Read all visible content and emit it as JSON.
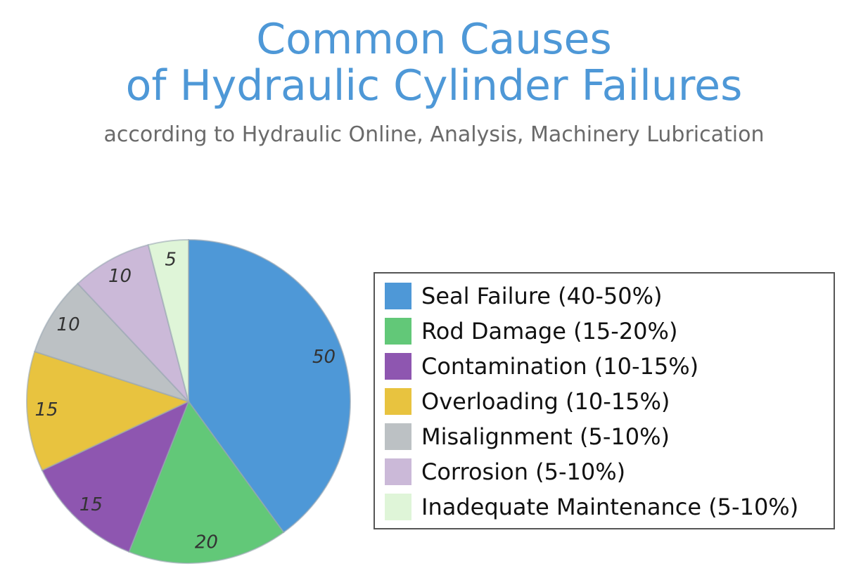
{
  "chart_data": {
    "type": "pie",
    "title_line1": "Common Causes",
    "title_line2": "of Hydraulic Cylinder Failures",
    "subtitle": "according to Hydraulic Online, Analysis, Machinery Lubrication",
    "start_angle_deg": 0,
    "direction": "clockwise",
    "legend_position": "right",
    "slices": [
      {
        "label": "Seal Failure (40-50%)",
        "value": 50,
        "color": "#4e98d7"
      },
      {
        "label": "Rod Damage (15-20%)",
        "value": 20,
        "color": "#62c878"
      },
      {
        "label": "Contamination (10-15%)",
        "value": 15,
        "color": "#8e56b0"
      },
      {
        "label": "Overloading (10-15%)",
        "value": 15,
        "color": "#e8c33f"
      },
      {
        "label": "Misalignment (5-10%)",
        "value": 10,
        "color": "#bcc1c4"
      },
      {
        "label": "Corrosion (5-10%)",
        "value": 10,
        "color": "#cbb9d8"
      },
      {
        "label": "Inadequate Maintenance (5-10%)",
        "value": 5,
        "color": "#dff5d8"
      }
    ]
  }
}
